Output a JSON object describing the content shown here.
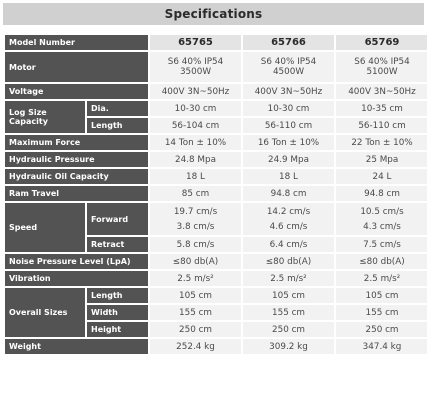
{
  "title": "Specifications",
  "models": [
    "65765",
    "65766",
    "65769"
  ],
  "labels": {
    "model_number": "Model Number",
    "motor": "Motor",
    "voltage": "Voltage",
    "log_size_capacity": "Log Size Capacity",
    "dia": "Dia.",
    "length": "Length",
    "maximum_force": "Maximum Force",
    "hydraulic_pressure": "Hydraulic Pressure",
    "hydraulic_oil_capacity": "Hydraulic Oil Capacity",
    "ram_travel": "Ram Travel",
    "speed": "Speed",
    "forward": "Forward",
    "retract": "Retract",
    "noise_pressure_level": "Noise Pressure Level (LpA)",
    "vibration": "Vibration",
    "overall_sizes": "Overall Sizes",
    "os_length": "Length",
    "os_width": "Width",
    "os_height": "Height",
    "weight": "Weight"
  },
  "motor": [
    [
      "S6 40% IP54",
      "3500W"
    ],
    [
      "S6 40% IP54",
      "4500W"
    ],
    [
      "S6 40% IP54",
      "5100W"
    ]
  ],
  "voltage": [
    "400V 3N~50Hz",
    "400V 3N~50Hz",
    "400V 3N~50Hz"
  ],
  "log_dia": [
    "10-30 cm",
    "10-30 cm",
    "10-35 cm"
  ],
  "log_length": [
    "56-104 cm",
    "56-110 cm",
    "56-110 cm"
  ],
  "maximum_force": [
    "14 Ton ± 10%",
    "16 Ton ± 10%",
    "22 Ton ± 10%"
  ],
  "hydraulic_pressure": [
    "24.8 Mpa",
    "24.9 Mpa",
    "25 Mpa"
  ],
  "hydraulic_oil_capacity": [
    "18 L",
    "18 L",
    "24 L"
  ],
  "ram_travel": [
    "85 cm",
    "94.8 cm",
    "94.8 cm"
  ],
  "speed_forward": [
    [
      "19.7 cm/s",
      "3.8 cm/s"
    ],
    [
      "14.2 cm/s",
      "4.6 cm/s"
    ],
    [
      "10.5 cm/s",
      "4.3 cm/s"
    ]
  ],
  "speed_retract": [
    "5.8 cm/s",
    "6.4 cm/s",
    "7.5 cm/s"
  ],
  "noise": [
    "≤80 db(A)",
    "≤80 db(A)",
    "≤80 db(A)"
  ],
  "vibration": [
    "2.5 m/s²",
    "2.5 m/s²",
    "2.5 m/s²"
  ],
  "os_length": [
    "105 cm",
    "105 cm",
    "105 cm"
  ],
  "os_width": [
    "155 cm",
    "155 cm",
    "155 cm"
  ],
  "os_height": [
    "250 cm",
    "250 cm",
    "250 cm"
  ],
  "weight": [
    "252.4 kg",
    "309.2 kg",
    "347.4 kg"
  ]
}
